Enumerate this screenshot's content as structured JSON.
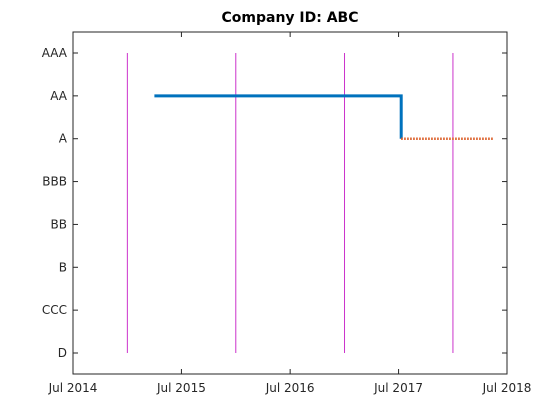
{
  "chart_data": {
    "type": "line",
    "title": "Company ID: ABC",
    "xlabel": "",
    "ylabel": "",
    "x_axis": {
      "type": "date",
      "range": [
        "2014-07-01",
        "2018-07-01"
      ],
      "ticks": [
        {
          "value": "2014-07-01",
          "label": "Jul 2014"
        },
        {
          "value": "2015-07-01",
          "label": "Jul 2015"
        },
        {
          "value": "2016-07-01",
          "label": "Jul 2016"
        },
        {
          "value": "2017-07-01",
          "label": "Jul 2017"
        },
        {
          "value": "2018-07-01",
          "label": "Jul 2018"
        }
      ]
    },
    "y_axis": {
      "type": "category",
      "categories": [
        "D",
        "CCC",
        "B",
        "BB",
        "BBB",
        "A",
        "AA",
        "AAA"
      ],
      "range": [
        "D",
        "AAA"
      ]
    },
    "grid": false,
    "box": true,
    "series": [
      {
        "style": "solid",
        "color": "#0072BD",
        "points": [
          {
            "x": "2015-04-01",
            "y": "AA"
          },
          {
            "x": "2017-07-10",
            "y": "AA"
          },
          {
            "x": "2017-07-10",
            "y": "A"
          }
        ]
      },
      {
        "style": "dotted",
        "color": "#D95319",
        "points": [
          {
            "x": "2017-07-10",
            "y": "A"
          },
          {
            "x": "2018-05-15",
            "y": "A"
          }
        ]
      }
    ],
    "vertical_lines": {
      "color": "#CC33CC",
      "y_range": [
        "D",
        "AAA"
      ],
      "x": [
        "2014-12-31",
        "2015-12-31",
        "2016-12-31",
        "2017-12-31"
      ]
    }
  }
}
